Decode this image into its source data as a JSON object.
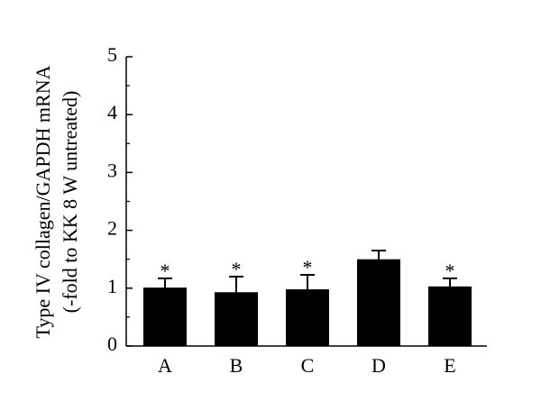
{
  "chart_data": {
    "type": "bar",
    "ylabel": [
      "Type IV collagen/GAPDH mRNA",
      "(-fold to KK 8 W untreated)"
    ],
    "categories": [
      "A",
      "B",
      "C",
      "D",
      "E"
    ],
    "values": [
      1.01,
      0.93,
      0.98,
      1.5,
      1.03
    ],
    "errors": [
      0.16,
      0.27,
      0.25,
      0.15,
      0.14
    ],
    "annotations": [
      "*",
      "*",
      "*",
      null,
      "*"
    ],
    "color": "#000000",
    "ylim": [
      0,
      5
    ],
    "yticks": [
      0,
      1,
      2,
      3,
      4,
      5
    ],
    "yminor_ticks": [
      0.5,
      1.5,
      2.5,
      3.5,
      4.5
    ],
    "grid": false
  }
}
